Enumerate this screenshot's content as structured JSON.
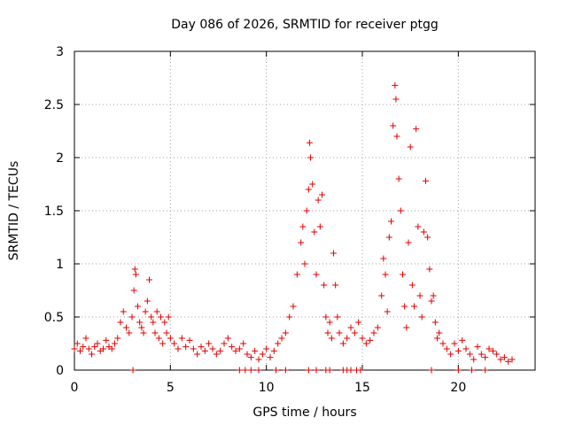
{
  "chart_data": {
    "type": "scatter",
    "title": "Day 086 of 2026, SRMTID for receiver ptgg",
    "xlabel": "GPS time / hours",
    "ylabel": "SRMTID / TECUs",
    "xlim": [
      0,
      24
    ],
    "ylim": [
      0,
      3
    ],
    "xticks": [
      "0",
      "5",
      "10",
      "15",
      "20"
    ],
    "xtick_values": [
      0,
      5,
      10,
      15,
      20
    ],
    "yticks": [
      "0",
      "0.5",
      "1",
      "1.5",
      "2",
      "2.5",
      "3"
    ],
    "ytick_values": [
      0,
      0.5,
      1,
      1.5,
      2,
      2.5,
      3
    ],
    "grid": true,
    "marker": "+",
    "color": "#e00000",
    "series": [
      {
        "name": "SRMTID",
        "x": [
          0.0,
          0.15,
          0.3,
          0.45,
          0.6,
          0.75,
          0.9,
          1.05,
          1.2,
          1.35,
          1.5,
          1.65,
          1.8,
          1.95,
          2.1,
          2.25,
          2.4,
          2.55,
          2.7,
          2.85,
          3.0,
          3.1,
          3.15,
          3.2,
          3.3,
          3.4,
          3.5,
          3.6,
          3.7,
          3.8,
          3.9,
          4.0,
          4.1,
          4.2,
          4.3,
          4.4,
          4.5,
          4.6,
          4.7,
          4.8,
          4.9,
          5.0,
          5.2,
          5.4,
          5.6,
          5.8,
          6.0,
          6.2,
          6.4,
          6.6,
          6.8,
          7.0,
          7.2,
          7.4,
          7.6,
          7.8,
          8.0,
          8.2,
          8.4,
          8.6,
          8.8,
          9.0,
          9.2,
          9.4,
          9.6,
          9.8,
          10.0,
          10.2,
          10.4,
          10.6,
          10.8,
          11.0,
          11.2,
          11.4,
          11.6,
          11.8,
          11.9,
          12.0,
          12.1,
          12.2,
          12.25,
          12.3,
          12.4,
          12.5,
          12.6,
          12.7,
          12.8,
          12.9,
          13.0,
          13.1,
          13.2,
          13.3,
          13.4,
          13.5,
          13.6,
          13.7,
          13.8,
          14.0,
          14.2,
          14.4,
          14.6,
          14.8,
          15.0,
          15.2,
          15.4,
          15.6,
          15.8,
          16.0,
          16.1,
          16.2,
          16.3,
          16.4,
          16.5,
          16.6,
          16.7,
          16.75,
          16.8,
          16.9,
          17.0,
          17.1,
          17.2,
          17.3,
          17.4,
          17.5,
          17.6,
          17.7,
          17.8,
          17.9,
          18.0,
          18.1,
          18.2,
          18.3,
          18.4,
          18.5,
          18.6,
          18.7,
          18.8,
          18.9,
          19.0,
          19.2,
          19.4,
          19.6,
          19.8,
          20.0,
          20.2,
          20.4,
          20.6,
          20.8,
          21.0,
          21.2,
          21.4,
          21.6,
          21.8,
          22.0,
          22.2,
          22.4,
          22.6,
          22.8,
          3.05,
          8.6,
          8.9,
          9.2,
          9.6,
          10.5,
          11.0,
          12.2,
          12.6,
          13.1,
          13.3,
          14.0,
          14.2,
          14.4,
          14.7,
          14.9,
          18.6,
          20.0,
          20.7,
          21.4
        ],
        "y": [
          0.2,
          0.25,
          0.18,
          0.22,
          0.3,
          0.2,
          0.15,
          0.22,
          0.25,
          0.18,
          0.2,
          0.28,
          0.22,
          0.2,
          0.25,
          0.3,
          0.45,
          0.55,
          0.4,
          0.35,
          0.5,
          0.75,
          0.95,
          0.9,
          0.6,
          0.45,
          0.4,
          0.35,
          0.55,
          0.65,
          0.85,
          0.5,
          0.45,
          0.35,
          0.55,
          0.3,
          0.5,
          0.25,
          0.45,
          0.35,
          0.5,
          0.3,
          0.25,
          0.2,
          0.3,
          0.22,
          0.28,
          0.2,
          0.15,
          0.22,
          0.18,
          0.25,
          0.2,
          0.15,
          0.18,
          0.25,
          0.3,
          0.22,
          0.18,
          0.2,
          0.25,
          0.15,
          0.12,
          0.18,
          0.1,
          0.15,
          0.2,
          0.12,
          0.18,
          0.25,
          0.3,
          0.35,
          0.5,
          0.6,
          0.9,
          1.2,
          1.35,
          1.0,
          1.5,
          1.7,
          2.14,
          2.0,
          1.75,
          1.3,
          0.9,
          1.6,
          1.35,
          1.65,
          0.8,
          0.5,
          0.35,
          0.45,
          0.3,
          1.1,
          0.8,
          0.5,
          0.35,
          0.25,
          0.3,
          0.4,
          0.35,
          0.45,
          0.3,
          0.25,
          0.28,
          0.35,
          0.4,
          0.7,
          1.05,
          0.9,
          0.55,
          1.25,
          1.4,
          2.3,
          2.68,
          2.55,
          2.2,
          1.8,
          1.5,
          0.9,
          0.6,
          0.4,
          1.2,
          2.1,
          0.8,
          0.6,
          2.27,
          1.35,
          0.7,
          0.5,
          1.3,
          1.78,
          1.25,
          0.95,
          0.65,
          0.7,
          0.45,
          0.3,
          0.35,
          0.25,
          0.2,
          0.15,
          0.25,
          0.18,
          0.28,
          0.2,
          0.15,
          0.1,
          0.22,
          0.15,
          0.12,
          0.2,
          0.18,
          0.15,
          0.1,
          0.12,
          0.08,
          0.1,
          0.0,
          0.0,
          0.0,
          0.0,
          0.0,
          0.0,
          0.0,
          0.0,
          0.0,
          0.0,
          0.0,
          0.0,
          0.0,
          0.0,
          0.0,
          0.0,
          0.0,
          0.0,
          0.0,
          0.0
        ]
      }
    ]
  }
}
